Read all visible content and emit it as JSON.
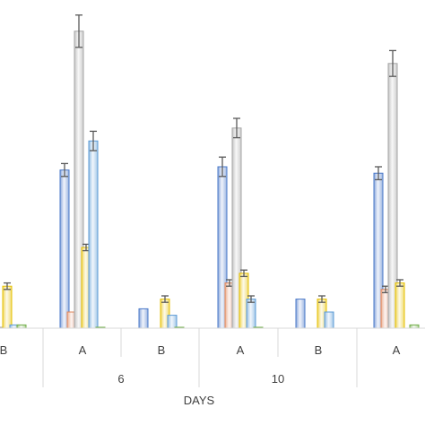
{
  "chart_data": {
    "type": "bar",
    "title": "",
    "xlabel": "DAYS",
    "ylabel": "",
    "grid": false,
    "legend": "none",
    "error_bars": true,
    "sub_categories": [
      "B",
      "A",
      "B",
      "A",
      "B",
      "A"
    ],
    "group_labels": [
      "",
      "6",
      "10",
      ""
    ],
    "series_colors": [
      "#4a78c8",
      "#e0865a",
      "#a6a6a6",
      "#e6c000",
      "#5b9bd5",
      "#70ad47"
    ],
    "series": [
      {
        "values": [
          null,
          49,
          6,
          50,
          9,
          48
        ]
      },
      {
        "values": [
          null,
          5,
          null,
          14,
          null,
          12
        ]
      },
      {
        "values": [
          0,
          92,
          null,
          62,
          null,
          82
        ]
      },
      {
        "values": [
          13,
          25,
          9,
          17,
          9,
          14
        ]
      },
      {
        "values": [
          1,
          58,
          4,
          9,
          5,
          null
        ]
      },
      {
        "values": [
          1,
          0,
          0,
          0,
          null,
          1
        ]
      }
    ],
    "errors": [
      [
        null,
        2,
        0,
        3,
        0,
        2
      ],
      [
        null,
        0,
        null,
        1,
        null,
        1
      ],
      [
        0,
        5,
        null,
        3,
        null,
        4
      ],
      [
        1,
        1,
        1,
        1,
        1,
        1
      ],
      [
        0,
        3,
        0,
        1,
        0,
        null
      ],
      [
        0,
        0,
        0,
        0,
        null,
        0
      ]
    ],
    "ylim": [
      0,
      100
    ]
  }
}
